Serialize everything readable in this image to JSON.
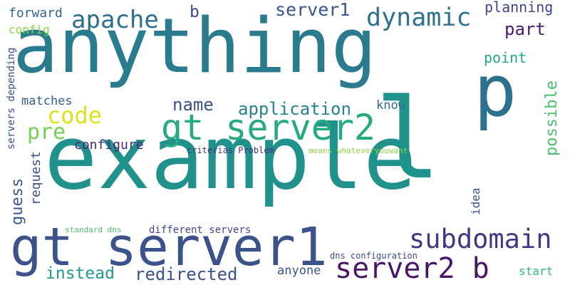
{
  "words": [
    {
      "id": "anything",
      "text": "anything",
      "color": "#2a7b8e"
    },
    {
      "id": "example",
      "text": "example",
      "color": "#21918c"
    },
    {
      "id": "p",
      "text": "p",
      "color": "#2c728e"
    },
    {
      "id": "l",
      "text": "l",
      "color": "#1f948c"
    },
    {
      "id": "gt-server1",
      "text": "gt server1",
      "color": "#3b528b"
    },
    {
      "id": "gt-server2",
      "text": "gt server2",
      "color": "#25ab82"
    },
    {
      "id": "server2-b",
      "text": "server2 b",
      "color": "#481668"
    },
    {
      "id": "subdomain",
      "text": "subdomain",
      "color": "#453781"
    },
    {
      "id": "apache",
      "text": "apache",
      "color": "#2d708e"
    },
    {
      "id": "b",
      "text": "b",
      "color": "#3e4a89"
    },
    {
      "id": "dynamic",
      "text": "dynamic",
      "color": "#2d718e"
    },
    {
      "id": "server1",
      "text": "server1",
      "color": "#3a548c"
    },
    {
      "id": "planning",
      "text": "planning",
      "color": "#3f4788"
    },
    {
      "id": "part",
      "text": "part",
      "color": "#481a6c"
    },
    {
      "id": "forward",
      "text": "forward",
      "color": "#31678e"
    },
    {
      "id": "config",
      "text": "config",
      "color": "#8bd646"
    },
    {
      "id": "servers-depending",
      "text": "servers depending",
      "color": "#3c4f8a"
    },
    {
      "id": "code",
      "text": "code",
      "color": "#dde318"
    },
    {
      "id": "pre",
      "text": "pre",
      "color": "#75d054"
    },
    {
      "id": "guess",
      "text": "guess",
      "color": "#38598c"
    },
    {
      "id": "name",
      "text": "name",
      "color": "#3a538b"
    },
    {
      "id": "application",
      "text": "application",
      "color": "#25838e"
    },
    {
      "id": "matches",
      "text": "matches",
      "color": "#355f8d"
    },
    {
      "id": "configure",
      "text": "configure",
      "color": "#482475"
    },
    {
      "id": "know",
      "text": "know",
      "color": "#2e6f8e"
    },
    {
      "id": "point",
      "text": "point",
      "color": "#23a983"
    },
    {
      "id": "possible",
      "text": "possible",
      "color": "#4ac16d"
    },
    {
      "id": "request",
      "text": "request",
      "color": "#3c4f8a"
    },
    {
      "id": "criterias-problem",
      "text": "criterias Problem",
      "color": "#46327e"
    },
    {
      "id": "means-whatever",
      "text": "means whateveryouwant",
      "color": "#8fd744"
    },
    {
      "id": "idea",
      "text": "idea",
      "color": "#3b528b"
    },
    {
      "id": "standard-dns",
      "text": "standard dns",
      "color": "#4ac16d"
    },
    {
      "id": "different-servers",
      "text": "different servers",
      "color": "#3e4a89"
    },
    {
      "id": "instead",
      "text": "instead",
      "color": "#1f9a8a"
    },
    {
      "id": "redirected",
      "text": "redirected",
      "color": "#3b528b"
    },
    {
      "id": "anyone",
      "text": "anyone",
      "color": "#39558c"
    },
    {
      "id": "dns-configuration",
      "text": "dns configuration",
      "color": "#3e4989"
    },
    {
      "id": "start",
      "text": "start",
      "color": "#35b779"
    }
  ]
}
